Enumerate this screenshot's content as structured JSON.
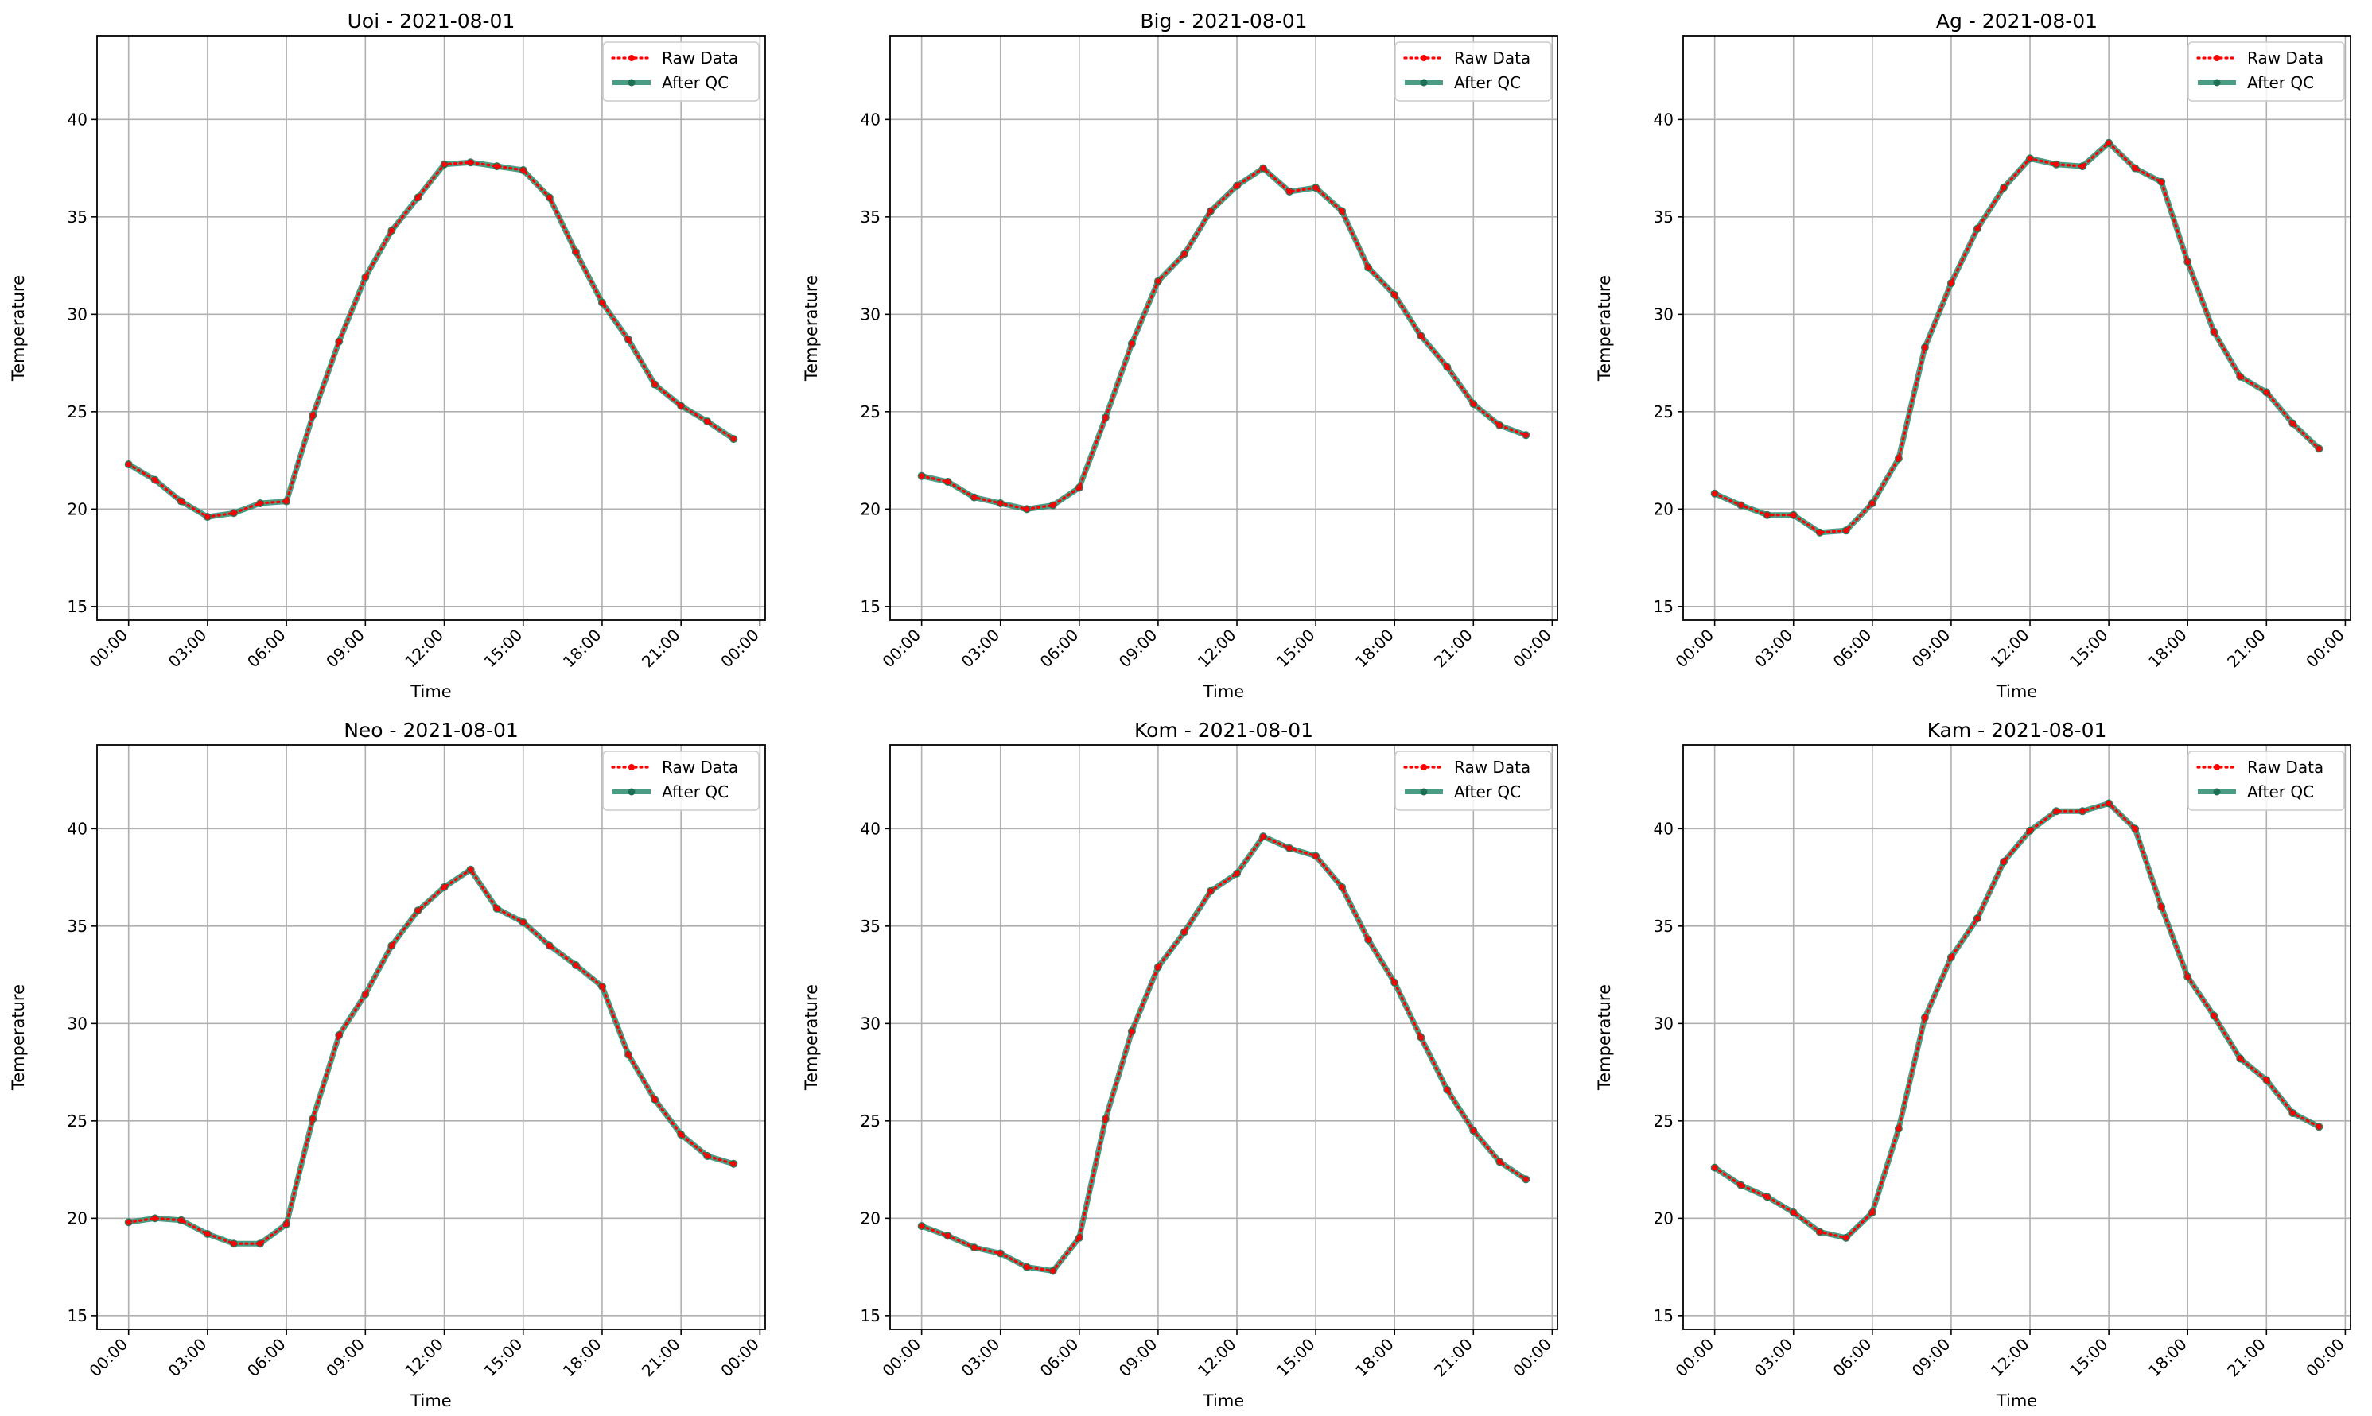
{
  "chart_data": [
    {
      "type": "line",
      "title": "Uoi - 2021-08-01",
      "xlabel": "Time",
      "ylabel": "Temperature",
      "ylim": [
        14.3,
        44.3
      ],
      "xlim_hours": [
        -1.2,
        24.2
      ],
      "x_ticks": [
        "00:00",
        "03:00",
        "06:00",
        "09:00",
        "12:00",
        "15:00",
        "18:00",
        "21:00",
        "00:00"
      ],
      "y_ticks": [
        15,
        20,
        25,
        30,
        35,
        40
      ],
      "grid": true,
      "legend": "top-right",
      "x_hours": [
        0,
        1,
        2,
        3,
        4,
        5,
        6,
        7,
        8,
        9,
        10,
        11,
        12,
        13,
        14,
        15,
        16,
        17,
        18,
        19,
        20,
        21,
        22,
        23
      ],
      "series": [
        {
          "name": "Raw Data",
          "color": "#ff0000",
          "style": "dotted",
          "values": [
            22.3,
            21.5,
            20.4,
            19.6,
            19.8,
            20.3,
            20.4,
            24.8,
            28.6,
            31.9,
            34.3,
            36.0,
            37.7,
            37.8,
            37.6,
            37.4,
            36.0,
            33.2,
            30.6,
            28.7,
            26.4,
            25.3,
            24.5,
            23.6
          ]
        },
        {
          "name": "After QC",
          "color": "#2a8c6e",
          "style": "solid",
          "values": [
            22.3,
            21.5,
            20.4,
            19.6,
            19.8,
            20.3,
            20.4,
            24.8,
            28.6,
            31.9,
            34.3,
            36.0,
            37.7,
            37.8,
            37.6,
            37.4,
            36.0,
            33.2,
            30.6,
            28.7,
            26.4,
            25.3,
            24.5,
            23.6
          ]
        }
      ]
    },
    {
      "type": "line",
      "title": "Big - 2021-08-01",
      "xlabel": "Time",
      "ylabel": "Temperature",
      "ylim": [
        14.3,
        44.3
      ],
      "xlim_hours": [
        -1.2,
        24.2
      ],
      "x_ticks": [
        "00:00",
        "03:00",
        "06:00",
        "09:00",
        "12:00",
        "15:00",
        "18:00",
        "21:00",
        "00:00"
      ],
      "y_ticks": [
        15,
        20,
        25,
        30,
        35,
        40
      ],
      "grid": true,
      "legend": "top-right",
      "x_hours": [
        0,
        1,
        2,
        3,
        4,
        5,
        6,
        7,
        8,
        9,
        10,
        11,
        12,
        13,
        14,
        15,
        16,
        17,
        18,
        19,
        20,
        21,
        22,
        23
      ],
      "series": [
        {
          "name": "Raw Data",
          "color": "#ff0000",
          "style": "dotted",
          "values": [
            21.7,
            21.4,
            20.6,
            20.3,
            20.0,
            20.2,
            21.1,
            24.7,
            28.5,
            31.7,
            33.1,
            35.3,
            36.6,
            37.5,
            36.3,
            36.5,
            35.3,
            32.4,
            31.0,
            28.9,
            27.3,
            25.4,
            24.3,
            23.8
          ]
        },
        {
          "name": "After QC",
          "color": "#2a8c6e",
          "style": "solid",
          "values": [
            21.7,
            21.4,
            20.6,
            20.3,
            20.0,
            20.2,
            21.1,
            24.7,
            28.5,
            31.7,
            33.1,
            35.3,
            36.6,
            37.5,
            36.3,
            36.5,
            35.3,
            32.4,
            31.0,
            28.9,
            27.3,
            25.4,
            24.3,
            23.8
          ]
        }
      ]
    },
    {
      "type": "line",
      "title": "Ag - 2021-08-01",
      "xlabel": "Time",
      "ylabel": "Temperature",
      "ylim": [
        14.3,
        44.3
      ],
      "xlim_hours": [
        -1.2,
        24.2
      ],
      "x_ticks": [
        "00:00",
        "03:00",
        "06:00",
        "09:00",
        "12:00",
        "15:00",
        "18:00",
        "21:00",
        "00:00"
      ],
      "y_ticks": [
        15,
        20,
        25,
        30,
        35,
        40
      ],
      "grid": true,
      "legend": "top-right",
      "x_hours": [
        0,
        1,
        2,
        3,
        4,
        5,
        6,
        7,
        8,
        9,
        10,
        11,
        12,
        13,
        14,
        15,
        16,
        17,
        18,
        19,
        20,
        21,
        22,
        23
      ],
      "series": [
        {
          "name": "Raw Data",
          "color": "#ff0000",
          "style": "dotted",
          "values": [
            20.8,
            20.2,
            19.7,
            19.7,
            18.8,
            18.9,
            20.3,
            22.6,
            28.3,
            31.6,
            34.4,
            36.5,
            38.0,
            37.7,
            37.6,
            38.8,
            37.5,
            36.8,
            32.7,
            29.1,
            26.8,
            26.0,
            24.4,
            23.1
          ]
        },
        {
          "name": "After QC",
          "color": "#2a8c6e",
          "style": "solid",
          "values": [
            20.8,
            20.2,
            19.7,
            19.7,
            18.8,
            18.9,
            20.3,
            22.6,
            28.3,
            31.6,
            34.4,
            36.5,
            38.0,
            37.7,
            37.6,
            38.8,
            37.5,
            36.8,
            32.7,
            29.1,
            26.8,
            26.0,
            24.4,
            23.1
          ]
        }
      ]
    },
    {
      "type": "line",
      "title": "Neo - 2021-08-01",
      "xlabel": "Time",
      "ylabel": "Temperature",
      "ylim": [
        14.3,
        44.3
      ],
      "xlim_hours": [
        -1.2,
        24.2
      ],
      "x_ticks": [
        "00:00",
        "03:00",
        "06:00",
        "09:00",
        "12:00",
        "15:00",
        "18:00",
        "21:00",
        "00:00"
      ],
      "y_ticks": [
        15,
        20,
        25,
        30,
        35,
        40
      ],
      "grid": true,
      "legend": "top-right",
      "x_hours": [
        0,
        1,
        2,
        3,
        4,
        5,
        6,
        7,
        8,
        9,
        10,
        11,
        12,
        13,
        14,
        15,
        16,
        17,
        18,
        19,
        20,
        21,
        22,
        23
      ],
      "series": [
        {
          "name": "Raw Data",
          "color": "#ff0000",
          "style": "dotted",
          "values": [
            19.8,
            20.0,
            19.9,
            19.2,
            18.7,
            18.7,
            19.7,
            25.1,
            29.4,
            31.5,
            34.0,
            35.8,
            37.0,
            37.9,
            35.9,
            35.2,
            34.0,
            33.0,
            31.9,
            28.4,
            26.1,
            24.3,
            23.2,
            22.8
          ]
        },
        {
          "name": "After QC",
          "color": "#2a8c6e",
          "style": "solid",
          "values": [
            19.8,
            20.0,
            19.9,
            19.2,
            18.7,
            18.7,
            19.7,
            25.1,
            29.4,
            31.5,
            34.0,
            35.8,
            37.0,
            37.9,
            35.9,
            35.2,
            34.0,
            33.0,
            31.9,
            28.4,
            26.1,
            24.3,
            23.2,
            22.8
          ]
        }
      ]
    },
    {
      "type": "line",
      "title": "Kom - 2021-08-01",
      "xlabel": "Time",
      "ylabel": "Temperature",
      "ylim": [
        14.3,
        44.3
      ],
      "xlim_hours": [
        -1.2,
        24.2
      ],
      "x_ticks": [
        "00:00",
        "03:00",
        "06:00",
        "09:00",
        "12:00",
        "15:00",
        "18:00",
        "21:00",
        "00:00"
      ],
      "y_ticks": [
        15,
        20,
        25,
        30,
        35,
        40
      ],
      "grid": true,
      "legend": "top-right",
      "x_hours": [
        0,
        1,
        2,
        3,
        4,
        5,
        6,
        7,
        8,
        9,
        10,
        11,
        12,
        13,
        14,
        15,
        16,
        17,
        18,
        19,
        20,
        21,
        22,
        23
      ],
      "series": [
        {
          "name": "Raw Data",
          "color": "#ff0000",
          "style": "dotted",
          "values": [
            19.6,
            19.1,
            18.5,
            18.2,
            17.5,
            17.3,
            19.0,
            25.1,
            29.6,
            32.9,
            34.7,
            36.8,
            37.7,
            39.6,
            39.0,
            38.6,
            37.0,
            34.3,
            32.1,
            29.3,
            26.6,
            24.5,
            22.9,
            22.0
          ]
        },
        {
          "name": "After QC",
          "color": "#2a8c6e",
          "style": "solid",
          "values": [
            19.6,
            19.1,
            18.5,
            18.2,
            17.5,
            17.3,
            19.0,
            25.1,
            29.6,
            32.9,
            34.7,
            36.8,
            37.7,
            39.6,
            39.0,
            38.6,
            37.0,
            34.3,
            32.1,
            29.3,
            26.6,
            24.5,
            22.9,
            22.0
          ]
        }
      ]
    },
    {
      "type": "line",
      "title": "Kam - 2021-08-01",
      "xlabel": "Time",
      "ylabel": "Temperature",
      "ylim": [
        14.3,
        44.3
      ],
      "xlim_hours": [
        -1.2,
        24.2
      ],
      "x_ticks": [
        "00:00",
        "03:00",
        "06:00",
        "09:00",
        "12:00",
        "15:00",
        "18:00",
        "21:00",
        "00:00"
      ],
      "y_ticks": [
        15,
        20,
        25,
        30,
        35,
        40
      ],
      "grid": true,
      "legend": "top-right",
      "x_hours": [
        0,
        1,
        2,
        3,
        4,
        5,
        6,
        7,
        8,
        9,
        10,
        11,
        12,
        13,
        14,
        15,
        16,
        17,
        18,
        19,
        20,
        21,
        22,
        23
      ],
      "series": [
        {
          "name": "Raw Data",
          "color": "#ff0000",
          "style": "dotted",
          "values": [
            22.6,
            21.7,
            21.1,
            20.3,
            19.3,
            19.0,
            20.3,
            24.6,
            30.3,
            33.4,
            35.4,
            38.3,
            39.9,
            40.9,
            40.9,
            41.3,
            40.0,
            36.0,
            32.4,
            30.4,
            28.2,
            27.1,
            25.4,
            24.7
          ]
        },
        {
          "name": "After QC",
          "color": "#2a8c6e",
          "style": "solid",
          "values": [
            22.6,
            21.7,
            21.1,
            20.3,
            19.3,
            19.0,
            20.3,
            24.6,
            30.3,
            33.4,
            35.4,
            38.3,
            39.9,
            40.9,
            40.9,
            41.3,
            40.0,
            36.0,
            32.4,
            30.4,
            28.2,
            27.1,
            25.4,
            24.7
          ]
        }
      ]
    }
  ]
}
